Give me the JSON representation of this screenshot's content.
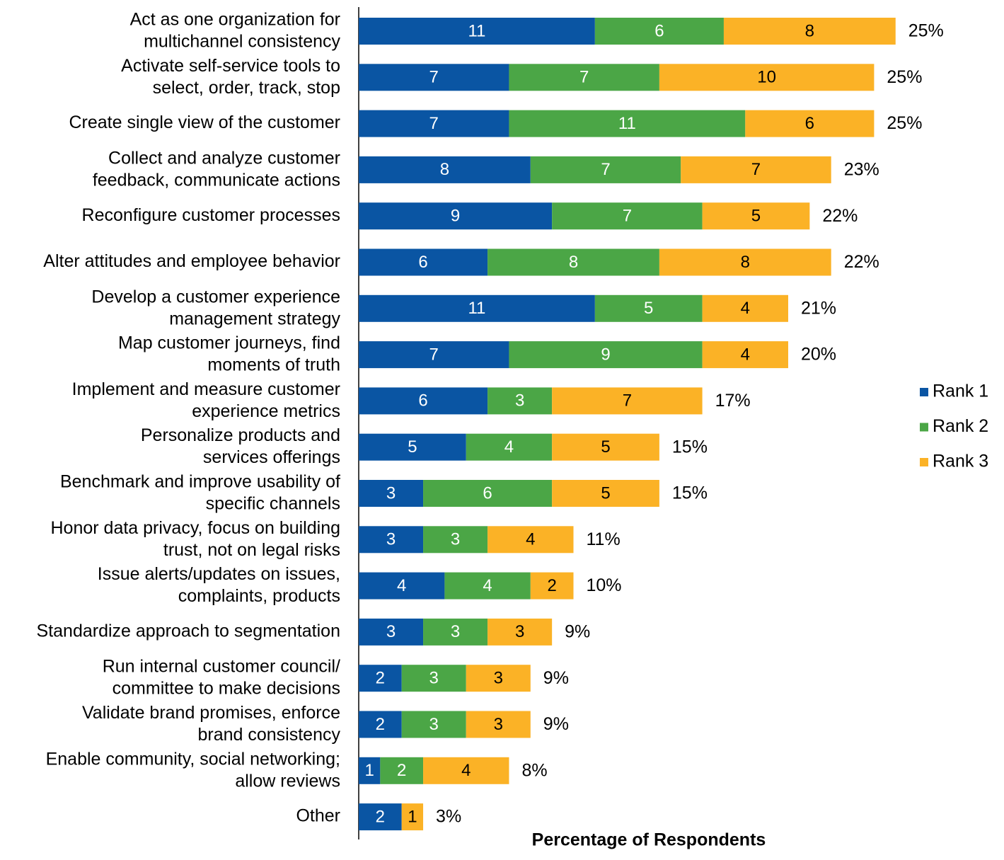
{
  "chart_data": {
    "type": "bar",
    "orientation": "horizontal",
    "stacked": true,
    "x_label": "Percentage of Respondents",
    "categories": [
      "Act as one organization for\nmultichannel consistency",
      "Activate self-service tools to\nselect, order, track, stop",
      "Create single view of the customer",
      "Collect and analyze customer\nfeedback, communicate actions",
      "Reconfigure customer processes",
      "Alter attitudes and employee behavior",
      "Develop a customer experience\nmanagement strategy",
      "Map customer journeys, find\nmoments of truth",
      "Implement and measure customer\nexperience metrics",
      "Personalize products and\nservices offerings",
      "Benchmark and improve usability of\nspecific channels",
      "Honor data privacy, focus on building\ntrust, not on legal risks",
      "Issue alerts/updates on issues,\ncomplaints, products",
      "Standardize approach to segmentation",
      "Run internal customer council/\ncommittee to make decisions",
      "Validate brand promises, enforce\nbrand consistency",
      "Enable community, social networking;\nallow reviews",
      "Other"
    ],
    "series": [
      {
        "name": "Rank 1",
        "color": "#0a55a3",
        "values": [
          11,
          7,
          7,
          8,
          9,
          6,
          11,
          7,
          6,
          5,
          3,
          3,
          4,
          3,
          2,
          2,
          1,
          2
        ]
      },
      {
        "name": "Rank 2",
        "color": "#4ba646",
        "values": [
          6,
          7,
          11,
          7,
          7,
          8,
          5,
          9,
          3,
          4,
          6,
          3,
          4,
          3,
          3,
          3,
          2,
          null
        ]
      },
      {
        "name": "Rank 3",
        "color": "#fbb226",
        "values": [
          8,
          10,
          6,
          7,
          5,
          8,
          4,
          4,
          7,
          5,
          5,
          4,
          2,
          3,
          3,
          3,
          4,
          1
        ]
      }
    ],
    "totals": {
      "values": [
        25,
        25,
        25,
        23,
        22,
        22,
        21,
        20,
        17,
        15,
        15,
        11,
        10,
        9,
        9,
        9,
        8,
        3
      ],
      "value_labels": [
        "25%",
        "25%",
        "25%",
        "23%",
        "22%",
        "22%",
        "21%",
        "20%",
        "17%",
        "15%",
        "15%",
        "11%",
        "10%",
        "9%",
        "9%",
        "9%",
        "8%",
        "3%"
      ]
    },
    "legend": "right"
  }
}
